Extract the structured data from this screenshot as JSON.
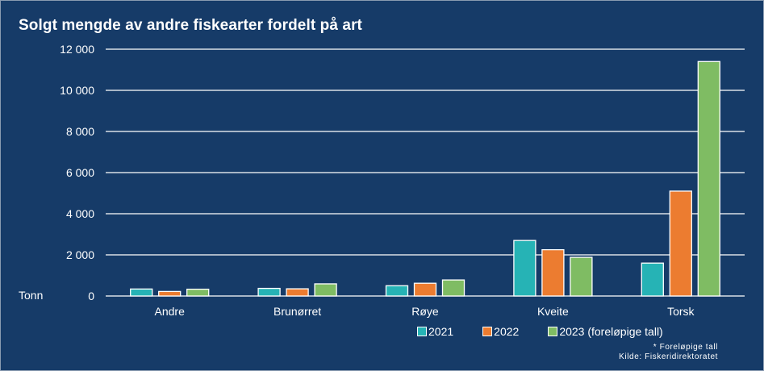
{
  "chart_data": {
    "type": "bar",
    "title": "Solgt mengde av andre fiskearter fordelt på art",
    "ylabel": "Tonn",
    "xlabel": "",
    "categories": [
      "Andre",
      "Brunørret",
      "Røye",
      "Kveite",
      "Torsk"
    ],
    "ylim": [
      0,
      12000
    ],
    "yticks": [
      0,
      2000,
      4000,
      6000,
      8000,
      10000,
      12000
    ],
    "ytick_labels": [
      "0",
      "2 000",
      "4 000",
      "6 000",
      "8 000",
      "10 000",
      "12 000"
    ],
    "grid": true,
    "legend_position": "bottom-right",
    "series": [
      {
        "name": "2021",
        "color": "#26b3b5",
        "values": [
          340,
          370,
          500,
          2700,
          1600
        ]
      },
      {
        "name": "2022",
        "color": "#ec7c30",
        "values": [
          220,
          350,
          620,
          2250,
          5100
        ]
      },
      {
        "name": "2023 (foreløpige tall)",
        "color": "#7fbc63",
        "values": [
          330,
          590,
          780,
          1880,
          11400
        ]
      }
    ],
    "notes": [
      "* Foreløpige tall",
      "Kilde: Fiskeridirektoratet"
    ]
  }
}
